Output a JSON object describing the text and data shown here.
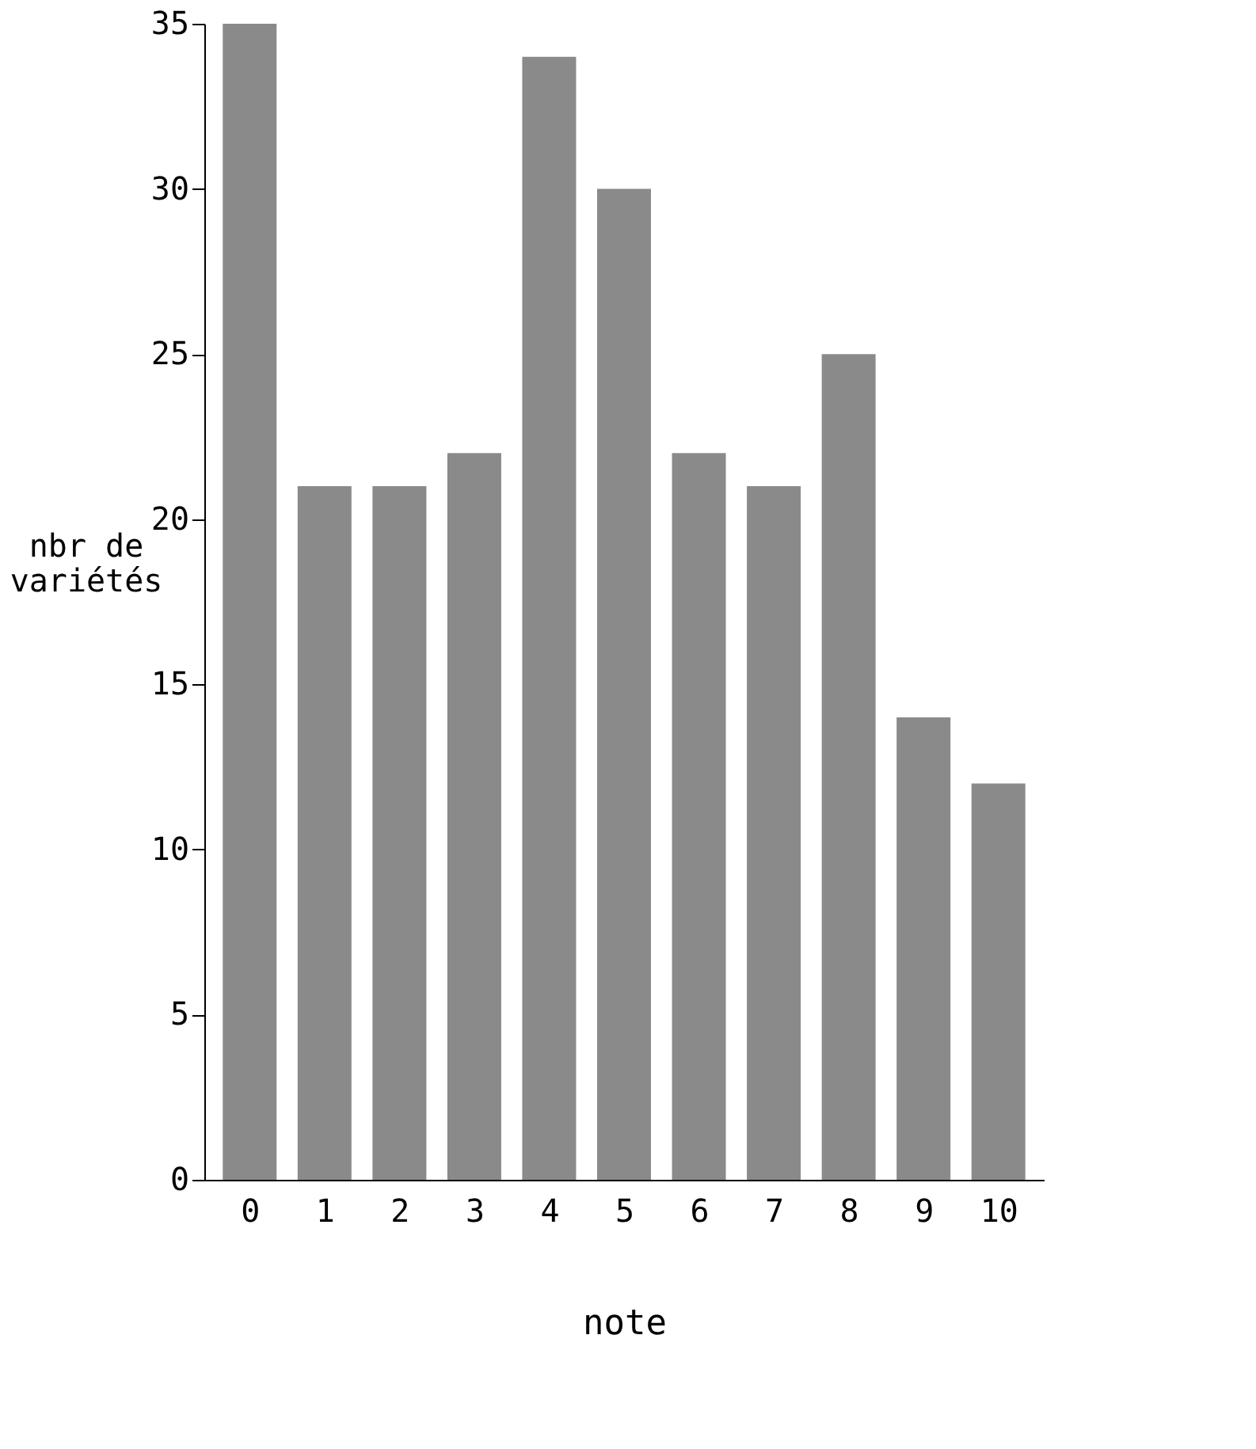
{
  "chart_data": {
    "type": "bar",
    "xlabel": "note",
    "ylabel": "nbr de\nvariétés",
    "categories": [
      "0",
      "1",
      "2",
      "3",
      "4",
      "5",
      "6",
      "7",
      "8",
      "9",
      "10"
    ],
    "values": [
      35,
      21,
      21,
      22,
      34,
      30,
      22,
      21,
      25,
      14,
      12
    ],
    "color": "#8a8a8a",
    "ylim": [
      0,
      35
    ],
    "yticks": [
      0,
      5,
      10,
      15,
      20,
      25,
      30,
      35
    ],
    "grid": false
  }
}
